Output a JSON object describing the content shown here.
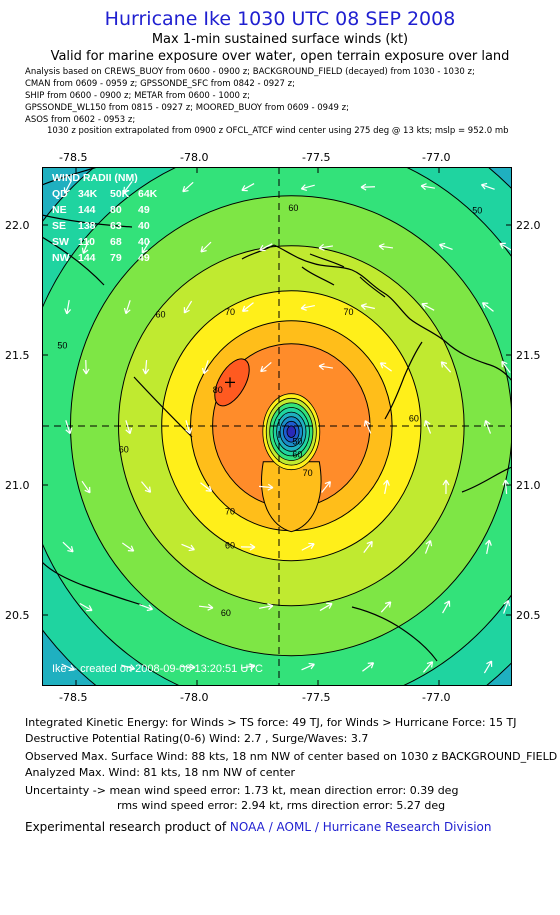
{
  "header": {
    "title": "Hurricane Ike 1030 UTC 08 SEP 2008",
    "subtitle": "Max 1-min sustained surface winds (kt)",
    "valid": "Valid for marine exposure over water, open terrain exposure over land"
  },
  "sources": [
    "Analysis based on  CREWS_BUOY from 0600 - 0900 z;  BACKGROUND_FIELD (decayed) from 1030 - 1030 z;",
    "CMAN from 0609 - 0959 z;  GPSSONDE_SFC from 0842 - 0927 z;",
    "SHIP from 0600 - 0900 z;  METAR from 0600 - 1000 z;",
    "GPSSONDE_WL150 from 0815 - 0927 z;  MOORED_BUOY from 0609 - 0949 z;",
    "ASOS from 0602 - 0953 z;"
  ],
  "position_note": "1030 z position extrapolated from 0900 z OFCL_ATCF wind center using 275 deg @ 13 kts; mslp = 952.0 mb",
  "axes": {
    "lon_ticks": [
      "-78.5",
      "-78.0",
      "-77.5",
      "-77.0"
    ],
    "lat_ticks": [
      "22.0",
      "21.5",
      "21.0",
      "20.5"
    ]
  },
  "map": {
    "lon_range": [
      -78.85,
      -76.55
    ],
    "lat_range": [
      20.25,
      22.25
    ],
    "center": {
      "lon": -77.63,
      "lat": 21.23
    },
    "max_wind_marker": {
      "lon": -77.93,
      "lat": 21.42
    },
    "contour_labels": [
      {
        "text": "50",
        "lon": -78.75,
        "lat": 21.55
      },
      {
        "text": "50",
        "lon": -76.72,
        "lat": 22.07
      },
      {
        "text": "60",
        "lon": -78.27,
        "lat": 21.67
      },
      {
        "text": "60",
        "lon": -77.62,
        "lat": 22.08
      },
      {
        "text": "60",
        "lon": -77.03,
        "lat": 21.27
      },
      {
        "text": "60",
        "lon": -78.45,
        "lat": 21.15
      },
      {
        "text": "60",
        "lon": -77.93,
        "lat": 20.78
      },
      {
        "text": "60",
        "lon": -77.95,
        "lat": 20.52
      },
      {
        "text": "70",
        "lon": -77.93,
        "lat": 21.68
      },
      {
        "text": "70",
        "lon": -77.35,
        "lat": 21.68
      },
      {
        "text": "70",
        "lon": -77.93,
        "lat": 20.91
      },
      {
        "text": "70",
        "lon": -77.55,
        "lat": 21.06
      },
      {
        "text": "80",
        "lon": -77.99,
        "lat": 21.38
      },
      {
        "text": "60",
        "lon": -77.6,
        "lat": 21.13
      },
      {
        "text": "50",
        "lon": -77.6,
        "lat": 21.18
      }
    ],
    "wind_radii_table": {
      "title": "WIND RADII (NM)",
      "header": [
        "QD",
        "34K",
        "50K",
        "64K"
      ],
      "rows": [
        [
          "NE",
          "144",
          "80",
          "49"
        ],
        [
          "SE",
          "138",
          "63",
          "40"
        ],
        [
          "SW",
          "110",
          "68",
          "40"
        ],
        [
          "NW",
          "144",
          "79",
          "49"
        ]
      ]
    },
    "credit": "Ike -- created on 2008-09-08 13:20:51 UTC"
  },
  "stats": {
    "ike": "Integrated Kinetic Energy:  for Winds > TS force: 49 TJ,  for Winds > Hurricane Force: 15 TJ",
    "rating": "Destructive Potential Rating(0-6)   Wind: 2.7 , Surge/Waves: 3.7",
    "observed_max": "Observed Max. Surface Wind: 88 kts, 18 nm NW of center based on 1030 z BACKGROUND_FIELD",
    "analyzed_max": "Analyzed Max. Wind: 81 kts, 18 nm NW of center",
    "uncertainty": "Uncertainty -> mean wind speed error: 1.73 kt,   mean direction error: 0.39 deg",
    "uncertainty_rms": "rms wind speed error: 2.94 kt,   rms direction error: 5.27 deg",
    "credit_prefix": "Experimental research product of ",
    "credit_org": "NOAA / AOML / Hurricane Research Division"
  },
  "colors": {
    "title": "#1f1fd0",
    "bands": [
      "#1a8cc9",
      "#1fb0c0",
      "#1fd4a0",
      "#33e27a",
      "#7ee645",
      "#c0ea30",
      "#ffef1a",
      "#ffbe1a",
      "#ff8c2a",
      "#ff5a20"
    ]
  }
}
